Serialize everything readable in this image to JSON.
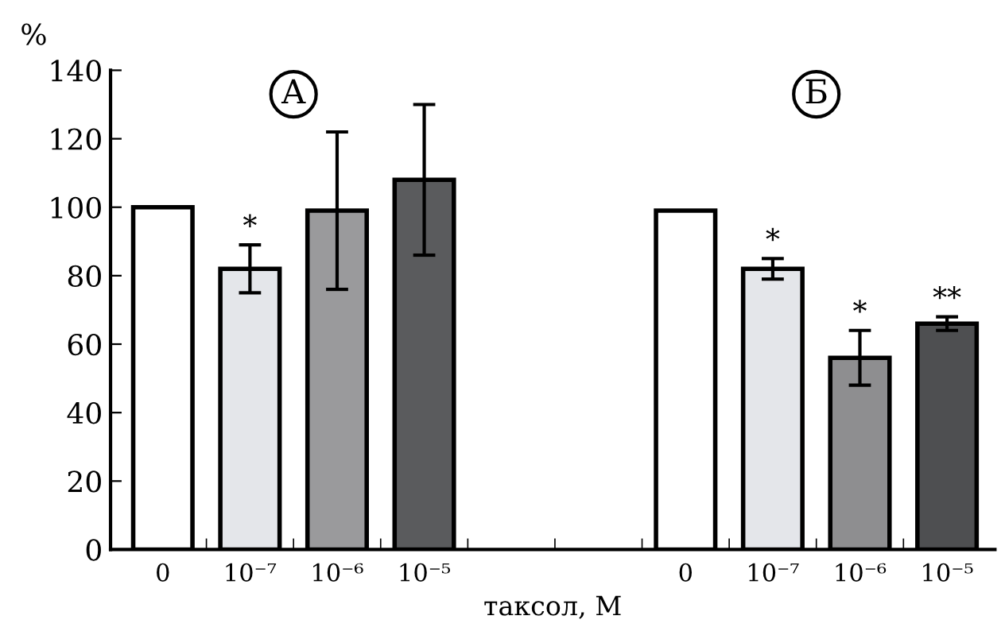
{
  "chart_data": {
    "type": "bar",
    "categories": [
      "0",
      "10⁻⁷",
      "10⁻⁶",
      "10⁻⁵",
      null,
      null,
      "0",
      "10⁻⁷",
      "10⁻⁶",
      "10⁻⁵"
    ],
    "values": [
      100,
      82,
      99,
      108,
      null,
      null,
      99,
      82,
      56,
      66
    ],
    "errors": [
      null,
      7,
      23,
      22,
      null,
      null,
      null,
      3,
      8,
      2
    ],
    "colors": [
      "#ffffff",
      "#e4e6ea",
      "#9a9a9c",
      "#5a5b5d",
      "#ffffff",
      "#ffffff",
      "#ffffff",
      "#e4e6ea",
      "#8e8e90",
      "#4e4f51"
    ],
    "ylabel": "%",
    "xlabel": "таксол, М",
    "ylim": [
      0,
      140
    ],
    "yticks": [
      0,
      20,
      40,
      60,
      80,
      100,
      120,
      140
    ],
    "value_labels": [
      null,
      "*",
      null,
      null,
      null,
      null,
      null,
      "*",
      "*",
      "**"
    ],
    "grid": false,
    "annotations": [
      "А",
      "Б"
    ]
  }
}
